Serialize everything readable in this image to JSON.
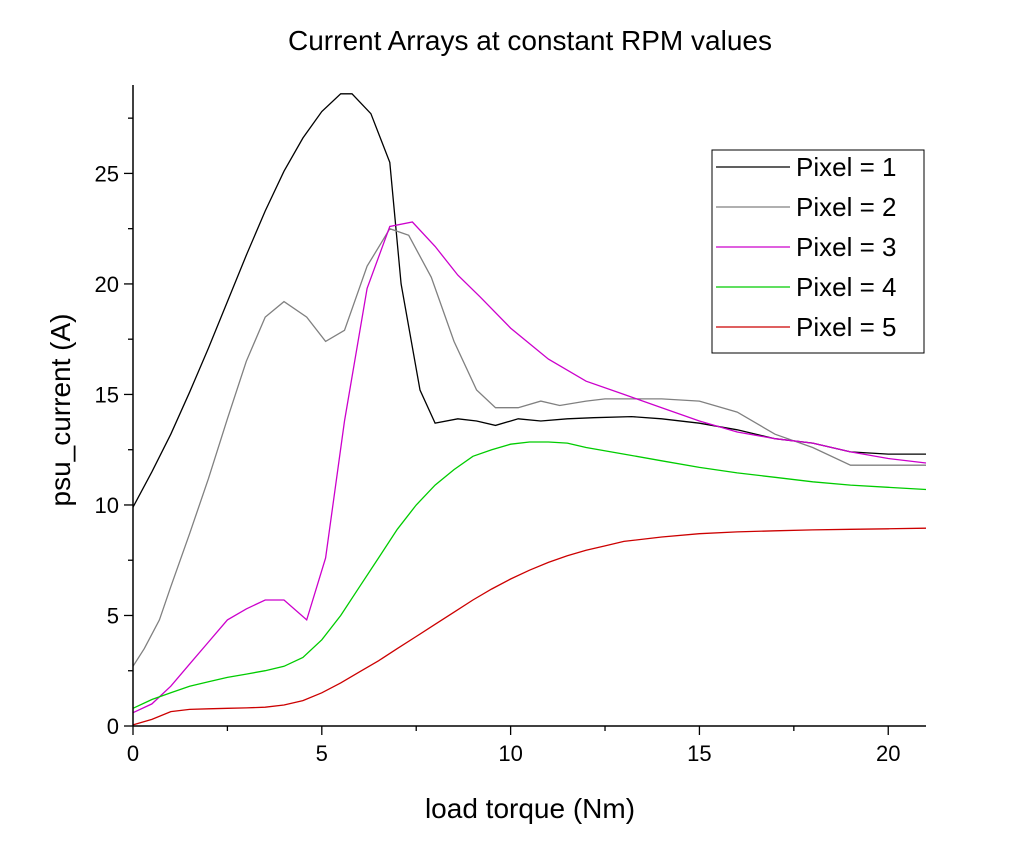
{
  "chart_data": {
    "type": "line",
    "title": "Current Arrays at constant RPM values",
    "xlabel": "load torque (Nm)",
    "ylabel": "psu_current (A)",
    "xlim": [
      0,
      21
    ],
    "ylim": [
      0,
      29
    ],
    "xticks": [
      0,
      5,
      10,
      15,
      20
    ],
    "yticks": [
      0,
      5,
      10,
      15,
      20,
      25
    ],
    "grid": false,
    "legend_position": "top-right",
    "series": [
      {
        "name": "Pixel = 1",
        "color": "#000000",
        "x": [
          0,
          0.5,
          1,
          1.5,
          2,
          2.5,
          3,
          3.5,
          4,
          4.5,
          5,
          5.5,
          5.8,
          6.3,
          6.8,
          7.1,
          7.6,
          8,
          8.6,
          9.1,
          9.6,
          10.2,
          10.8,
          11.5,
          12.2,
          13.2,
          14,
          15,
          16,
          17,
          18,
          19,
          20,
          21
        ],
        "y": [
          9.9,
          11.5,
          13.2,
          15.1,
          17.1,
          19.2,
          21.3,
          23.3,
          25.1,
          26.6,
          27.8,
          28.6,
          28.6,
          27.7,
          25.5,
          20,
          15.2,
          13.7,
          13.9,
          13.8,
          13.6,
          13.9,
          13.8,
          13.9,
          13.95,
          14,
          13.9,
          13.7,
          13.4,
          13.0,
          12.8,
          12.4,
          12.3,
          12.3
        ]
      },
      {
        "name": "Pixel = 2",
        "color": "#808080",
        "x": [
          0,
          0.3,
          0.7,
          1,
          1.5,
          2,
          2.5,
          3,
          3.5,
          4,
          4.6,
          5.1,
          5.6,
          6.2,
          6.8,
          7.3,
          7.9,
          8.5,
          9.1,
          9.6,
          10.2,
          10.8,
          11.3,
          12,
          12.5,
          13.2,
          14,
          15,
          16,
          17,
          18,
          19,
          20,
          21
        ],
        "y": [
          2.7,
          3.5,
          4.8,
          6.3,
          8.7,
          11.2,
          13.9,
          16.5,
          18.5,
          19.2,
          18.5,
          17.4,
          17.9,
          20.8,
          22.5,
          22.2,
          20.3,
          17.4,
          15.2,
          14.4,
          14.4,
          14.7,
          14.5,
          14.7,
          14.8,
          14.8,
          14.8,
          14.7,
          14.2,
          13.2,
          12.6,
          11.8,
          11.8,
          11.8
        ]
      },
      {
        "name": "Pixel = 3",
        "color": "#cc00cc",
        "x": [
          0,
          0.5,
          1,
          1.5,
          2,
          2.5,
          3,
          3.5,
          4,
          4.6,
          5.1,
          5.6,
          6.2,
          6.8,
          7.4,
          8,
          8.6,
          9.2,
          10,
          11,
          12,
          13,
          14,
          15,
          16,
          17,
          18,
          19,
          20,
          21
        ],
        "y": [
          0.6,
          1.0,
          1.8,
          2.8,
          3.8,
          4.8,
          5.3,
          5.7,
          5.7,
          4.8,
          7.6,
          13.8,
          19.8,
          22.6,
          22.8,
          21.7,
          20.4,
          19.4,
          18.0,
          16.6,
          15.6,
          15.0,
          14.4,
          13.8,
          13.3,
          13.0,
          12.8,
          12.4,
          12.1,
          11.9
        ]
      },
      {
        "name": "Pixel = 4",
        "color": "#00cc00",
        "x": [
          0,
          0.5,
          1,
          1.5,
          2,
          2.5,
          3,
          3.5,
          4,
          4.5,
          5,
          5.5,
          6,
          6.5,
          7,
          7.5,
          8,
          8.5,
          9,
          9.5,
          10,
          10.5,
          11,
          11.5,
          12,
          13,
          14,
          15,
          16,
          17,
          18,
          19,
          20,
          21
        ],
        "y": [
          0.8,
          1.2,
          1.5,
          1.8,
          2.0,
          2.2,
          2.35,
          2.5,
          2.7,
          3.1,
          3.9,
          5.0,
          6.3,
          7.6,
          8.9,
          10.0,
          10.9,
          11.6,
          12.2,
          12.5,
          12.75,
          12.85,
          12.85,
          12.8,
          12.6,
          12.3,
          12.0,
          11.7,
          11.45,
          11.25,
          11.05,
          10.9,
          10.8,
          10.7
        ]
      },
      {
        "name": "Pixel = 5",
        "color": "#cc0000",
        "x": [
          0,
          0.5,
          1,
          1.5,
          2,
          2.5,
          3,
          3.5,
          4,
          4.5,
          5,
          5.5,
          6,
          6.5,
          7,
          7.5,
          8,
          8.5,
          9,
          9.5,
          10,
          10.5,
          11,
          11.5,
          12,
          12.5,
          13,
          14,
          15,
          16,
          17,
          18,
          19,
          20,
          21
        ],
        "y": [
          0.05,
          0.3,
          0.65,
          0.75,
          0.78,
          0.8,
          0.82,
          0.85,
          0.95,
          1.15,
          1.5,
          1.95,
          2.45,
          2.95,
          3.5,
          4.05,
          4.6,
          5.15,
          5.7,
          6.2,
          6.65,
          7.05,
          7.4,
          7.7,
          7.95,
          8.15,
          8.35,
          8.55,
          8.7,
          8.78,
          8.83,
          8.87,
          8.9,
          8.92,
          8.95
        ]
      }
    ]
  }
}
